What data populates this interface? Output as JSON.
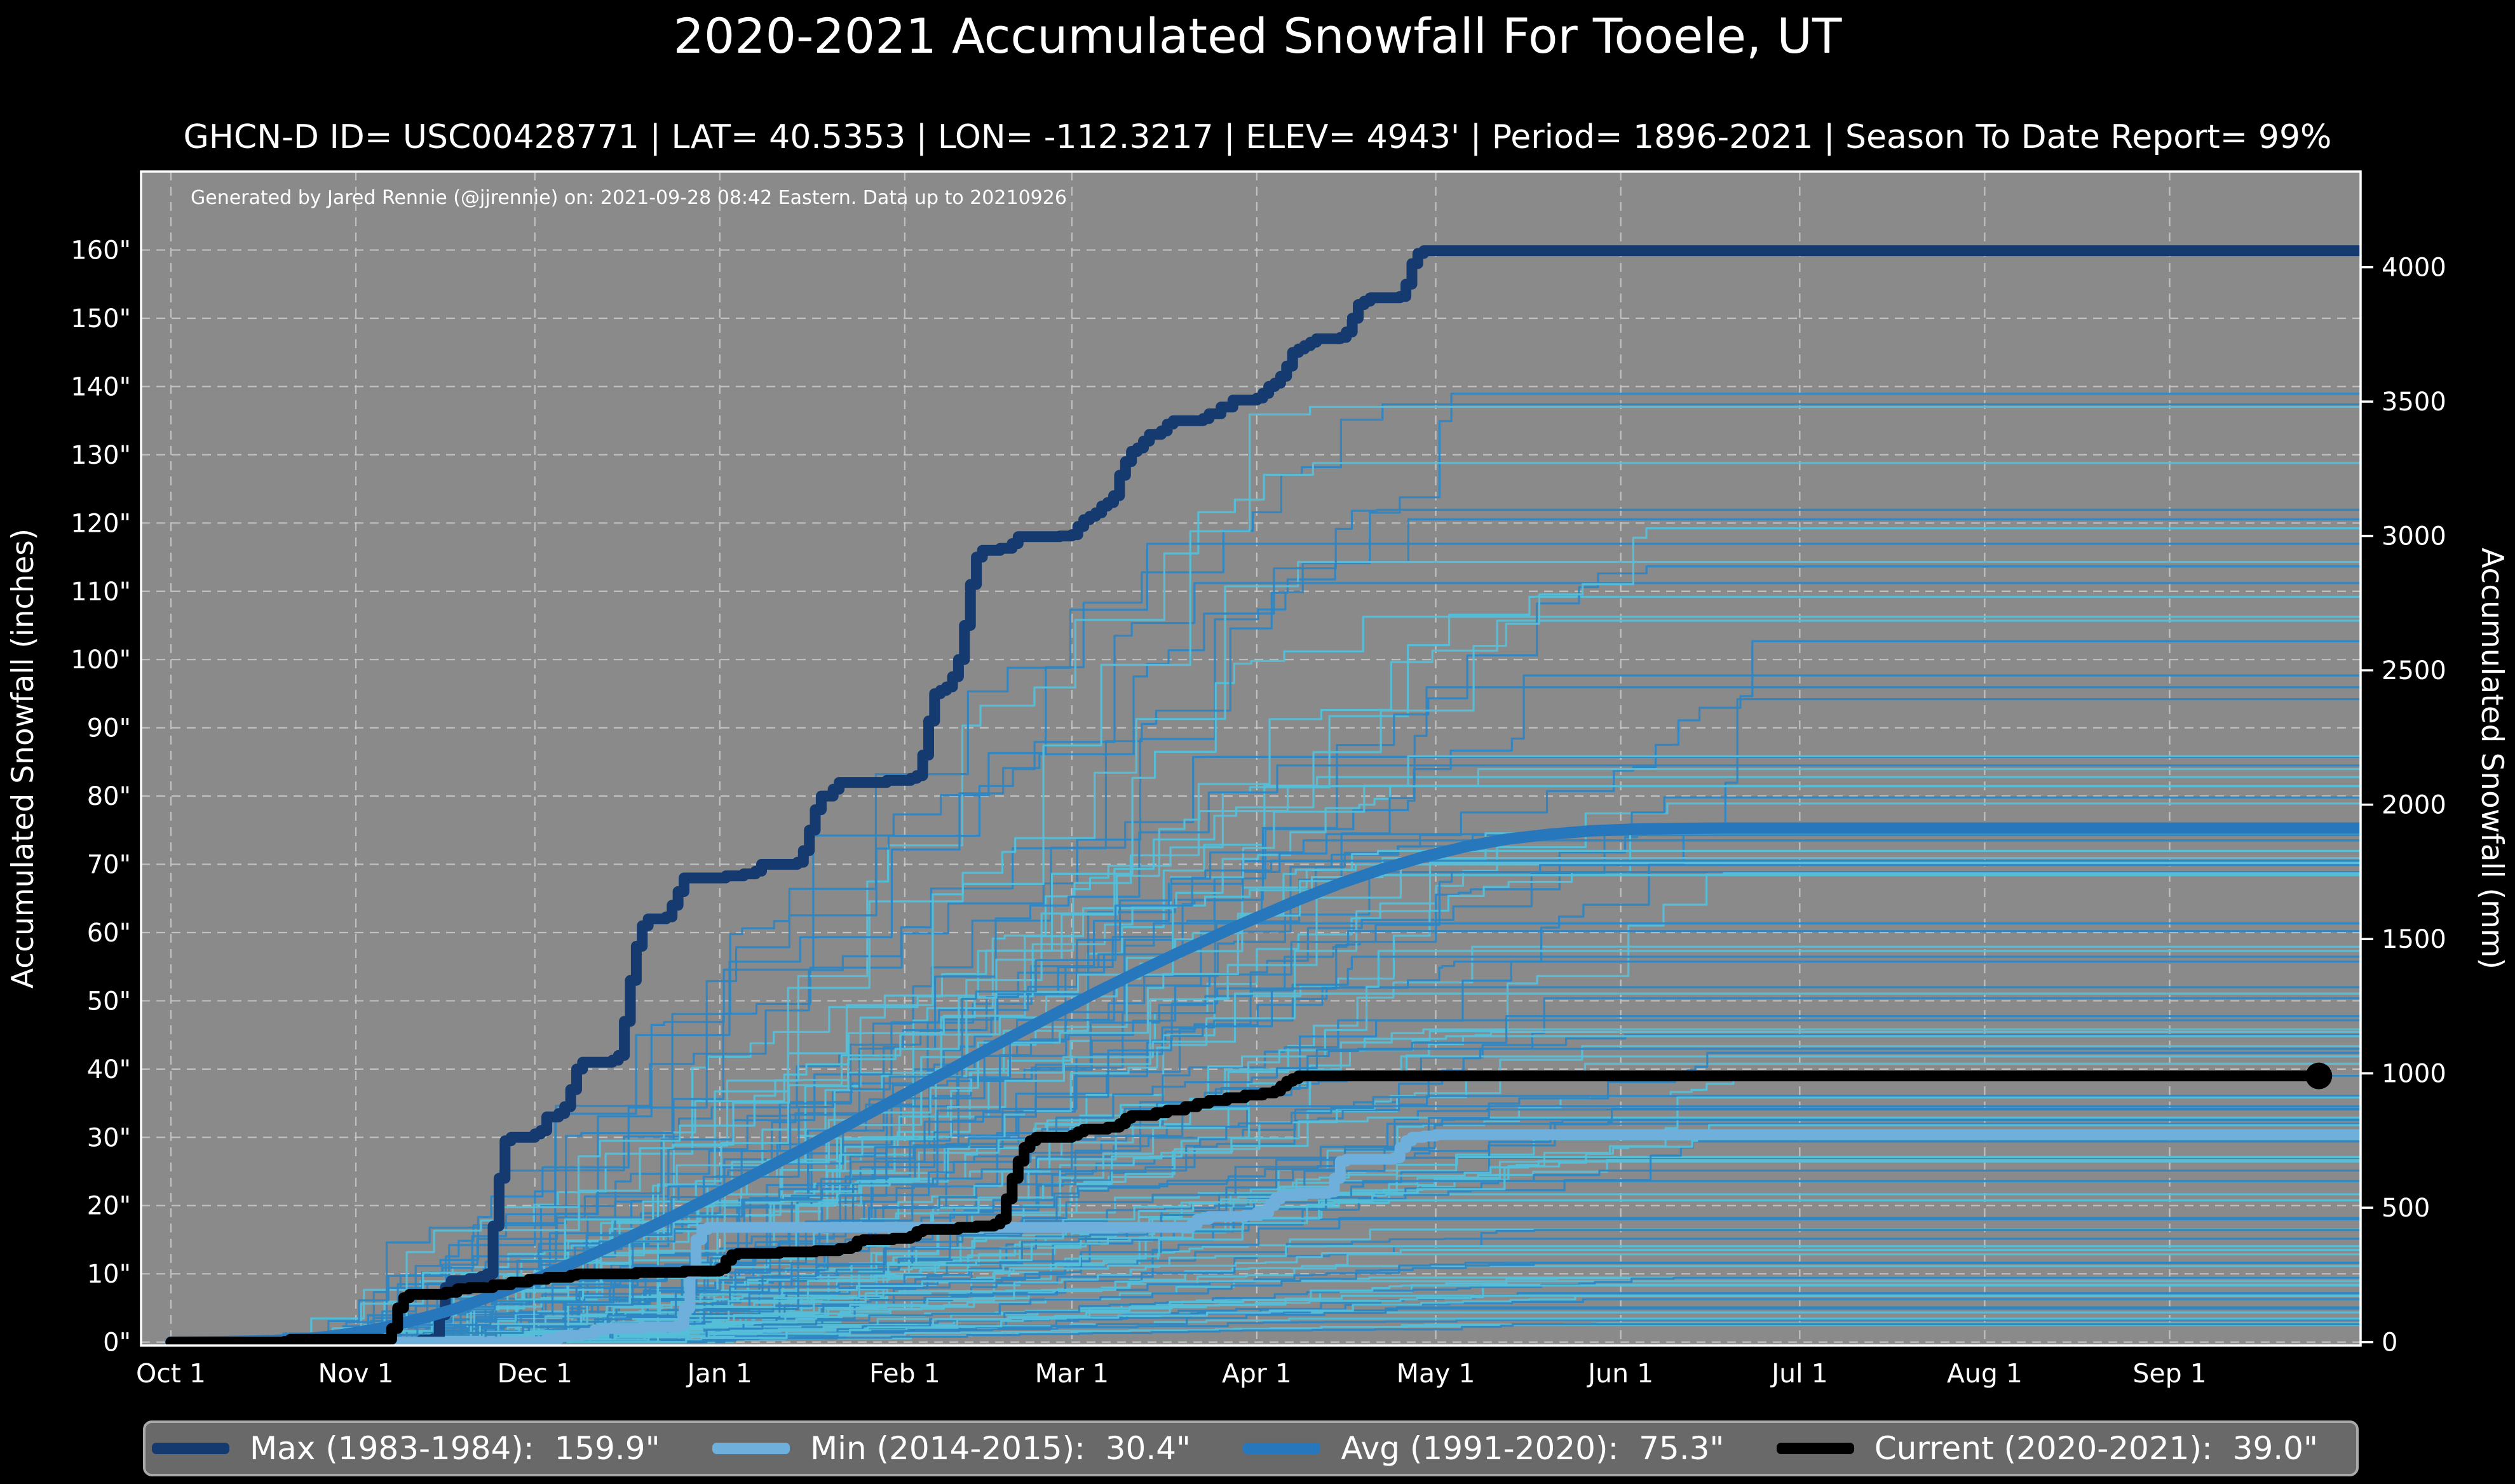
{
  "title": "2020-2021 Accumulated Snowfall For Tooele, UT",
  "subtitle": "GHCN-D ID= USC00428771 | LAT= 40.5353 | LON= -112.3217 | ELEV= 4943' | Period= 1896-2021 | Season To Date Report= 99%",
  "attribution": "Generated by Jared Rennie (@jjrennie) on: 2021-09-28 08:42 Eastern. Data up to 20210926",
  "legend": {
    "items": [
      {
        "label": "Max (1983-1984):  159.9\"",
        "color": "#153a70"
      },
      {
        "label": "Min (2014-2015):  30.4\"",
        "color": "#6fafdc"
      },
      {
        "label": "Avg (1991-2020):  75.3\"",
        "color": "#2777bd"
      },
      {
        "label": "Current (2020-2021):  39.0\"",
        "color": "#000000"
      }
    ]
  },
  "colors": {
    "figure_background": "#000000",
    "plot_background": "#8a8a8a",
    "grid": "#cfcfcf",
    "axis": "#ffffff",
    "text": "#ffffff"
  },
  "chart_data": {
    "type": "line",
    "title": "2020-2021 Accumulated Snowfall For Tooele, UT",
    "xlabel": "",
    "ylabel_left": "Accumulated Snowfall (inches)",
    "ylabel_right": "Accumulated Snowfall (mm)",
    "grid": true,
    "legend_position": "bottom",
    "x_axis": {
      "unit": "days since Oct 1",
      "domain": [
        -5,
        367
      ],
      "tick_days": [
        0,
        31,
        61,
        92,
        123,
        151,
        182,
        212,
        243,
        273,
        304,
        335
      ],
      "tick_labels": [
        "Oct 1",
        "Nov 1",
        "Dec 1",
        "Jan 1",
        "Feb 1",
        "Mar 1",
        "Apr 1",
        "May 1",
        "Jun 1",
        "Jul 1",
        "Aug 1",
        "Sep 1"
      ]
    },
    "y_axis_left": {
      "label": "Accumulated Snowfall (inches)",
      "domain": [
        -0.5,
        171.5
      ],
      "tick_values": [
        0,
        10,
        20,
        30,
        40,
        50,
        60,
        70,
        80,
        90,
        100,
        110,
        120,
        130,
        140,
        150,
        160
      ],
      "tick_labels": [
        "0\"",
        "10\"",
        "20\"",
        "30\"",
        "40\"",
        "50\"",
        "60\"",
        "70\"",
        "80\"",
        "90\"",
        "100\"",
        "110\"",
        "120\"",
        "130\"",
        "140\"",
        "150\"",
        "160\""
      ]
    },
    "y_axis_right": {
      "label": "Accumulated Snowfall (mm)",
      "tick_values": [
        0,
        500,
        1000,
        1500,
        2000,
        2500,
        3000,
        3500,
        4000
      ],
      "mm_per_inch": 25.4
    },
    "series": [
      {
        "name": "Max (1983-1984)",
        "final_value_inches": 159.9,
        "color": "#153a70",
        "width": 17,
        "interpolation": "step-after",
        "points": [
          [
            0,
            0
          ],
          [
            42,
            0.3
          ],
          [
            44,
            0.5
          ],
          [
            45,
            4
          ],
          [
            46,
            8
          ],
          [
            47,
            9
          ],
          [
            50,
            9.3
          ],
          [
            52,
            9.6
          ],
          [
            53,
            10
          ],
          [
            54,
            17
          ],
          [
            55,
            24
          ],
          [
            56,
            29.5
          ],
          [
            57,
            30
          ],
          [
            61,
            30.5
          ],
          [
            62,
            31
          ],
          [
            63,
            33
          ],
          [
            65,
            33.5
          ],
          [
            66,
            34.5
          ],
          [
            67,
            37
          ],
          [
            68,
            40
          ],
          [
            69,
            41
          ],
          [
            74,
            41.3
          ],
          [
            75,
            42
          ],
          [
            76,
            47
          ],
          [
            77,
            53
          ],
          [
            78,
            58
          ],
          [
            79,
            61
          ],
          [
            80,
            62
          ],
          [
            83,
            62.3
          ],
          [
            84,
            64
          ],
          [
            85,
            66
          ],
          [
            86,
            68
          ],
          [
            93,
            68.3
          ],
          [
            96,
            68.6
          ],
          [
            98,
            69
          ],
          [
            99,
            70
          ],
          [
            105,
            70.3
          ],
          [
            106,
            72
          ],
          [
            107,
            75
          ],
          [
            108,
            78
          ],
          [
            109,
            80
          ],
          [
            111,
            81
          ],
          [
            112,
            82
          ],
          [
            120,
            82.3
          ],
          [
            124,
            82.6
          ],
          [
            125,
            83
          ],
          [
            126,
            86
          ],
          [
            127,
            91
          ],
          [
            128,
            95
          ],
          [
            129,
            95.5
          ],
          [
            130,
            96
          ],
          [
            131,
            97.5
          ],
          [
            132,
            100
          ],
          [
            133,
            105
          ],
          [
            134,
            111
          ],
          [
            135,
            115
          ],
          [
            136,
            116
          ],
          [
            139,
            116.3
          ],
          [
            141,
            117
          ],
          [
            142,
            118
          ],
          [
            149,
            118.1
          ],
          [
            151,
            118.3
          ],
          [
            152,
            119.5
          ],
          [
            153,
            120.5
          ],
          [
            154,
            121
          ],
          [
            155,
            121.5
          ],
          [
            156,
            122.5
          ],
          [
            157,
            123
          ],
          [
            158,
            124
          ],
          [
            159,
            127
          ],
          [
            160,
            129
          ],
          [
            161,
            130.5
          ],
          [
            162,
            131
          ],
          [
            163,
            132
          ],
          [
            164,
            133
          ],
          [
            166,
            133.5
          ],
          [
            167,
            134.5
          ],
          [
            168,
            135
          ],
          [
            173,
            135.3
          ],
          [
            174,
            136
          ],
          [
            176,
            137
          ],
          [
            178,
            138
          ],
          [
            182,
            138.3
          ],
          [
            183,
            139
          ],
          [
            184,
            140
          ],
          [
            185,
            140.5
          ],
          [
            186,
            141.5
          ],
          [
            187,
            143
          ],
          [
            188,
            145
          ],
          [
            189,
            145.5
          ],
          [
            190,
            146
          ],
          [
            191,
            146.5
          ],
          [
            192,
            147
          ],
          [
            196,
            147.2
          ],
          [
            197,
            148
          ],
          [
            198,
            150
          ],
          [
            199,
            152
          ],
          [
            200,
            152.5
          ],
          [
            201,
            153
          ],
          [
            206,
            153.2
          ],
          [
            207,
            155
          ],
          [
            208,
            158
          ],
          [
            209,
            159.5
          ],
          [
            210,
            159.9
          ],
          [
            367,
            159.9
          ]
        ]
      },
      {
        "name": "Min (2014-2015)",
        "final_value_inches": 30.4,
        "color": "#6fafdc",
        "width": 17,
        "interpolation": "step-after",
        "points": [
          [
            0,
            0
          ],
          [
            62,
            0
          ],
          [
            63,
            0.4
          ],
          [
            65,
            0.8
          ],
          [
            66,
            1
          ],
          [
            69,
            1.3
          ],
          [
            71,
            1.8
          ],
          [
            73,
            2
          ],
          [
            79,
            2.2
          ],
          [
            85,
            2.5
          ],
          [
            86,
            5
          ],
          [
            87,
            10
          ],
          [
            88,
            15
          ],
          [
            89,
            16.5
          ],
          [
            90,
            16.8
          ],
          [
            170,
            16.8
          ],
          [
            171,
            17.2
          ],
          [
            172,
            18
          ],
          [
            174,
            18.4
          ],
          [
            180,
            18.6
          ],
          [
            182,
            19
          ],
          [
            184,
            20
          ],
          [
            185,
            21
          ],
          [
            186,
            21.5
          ],
          [
            189,
            21.8
          ],
          [
            194,
            22
          ],
          [
            195,
            24
          ],
          [
            196,
            26.5
          ],
          [
            197,
            26.8
          ],
          [
            205,
            27
          ],
          [
            206,
            28.5
          ],
          [
            207,
            29.5
          ],
          [
            208,
            30
          ],
          [
            210,
            30.2
          ],
          [
            212,
            30.4
          ],
          [
            367,
            30.4
          ]
        ]
      },
      {
        "name": "Avg (1991-2020)",
        "final_value_inches": 75.3,
        "color": "#2777bd",
        "width": 18,
        "interpolation": "linear",
        "points": [
          [
            0,
            0
          ],
          [
            8,
            0.05
          ],
          [
            14,
            0.15
          ],
          [
            19,
            0.3
          ],
          [
            24,
            0.6
          ],
          [
            28,
            1
          ],
          [
            31,
            1.4
          ],
          [
            35,
            2
          ],
          [
            39,
            2.8
          ],
          [
            43,
            3.7
          ],
          [
            47,
            4.7
          ],
          [
            52,
            6.2
          ],
          [
            56,
            7.5
          ],
          [
            61,
            9.2
          ],
          [
            65,
            10.7
          ],
          [
            70,
            12.6
          ],
          [
            75,
            14.6
          ],
          [
            80,
            16.7
          ],
          [
            85,
            18.8
          ],
          [
            92,
            21.9
          ],
          [
            99,
            25.1
          ],
          [
            106,
            28.3
          ],
          [
            113,
            31.6
          ],
          [
            120,
            34.9
          ],
          [
            127,
            38.2
          ],
          [
            134,
            41.5
          ],
          [
            141,
            44.8
          ],
          [
            148,
            48
          ],
          [
            155,
            51.2
          ],
          [
            162,
            54.2
          ],
          [
            169,
            57.1
          ],
          [
            176,
            59.9
          ],
          [
            182,
            62.2
          ],
          [
            189,
            64.8
          ],
          [
            196,
            67.2
          ],
          [
            203,
            69.3
          ],
          [
            210,
            71.1
          ],
          [
            217,
            72.6
          ],
          [
            224,
            73.7
          ],
          [
            231,
            74.4
          ],
          [
            238,
            74.9
          ],
          [
            245,
            75.15
          ],
          [
            252,
            75.25
          ],
          [
            260,
            75.3
          ],
          [
            367,
            75.3
          ]
        ]
      },
      {
        "name": "Current (2020-2021)",
        "final_value_inches": 39.0,
        "color": "#000000",
        "width": 17,
        "interpolation": "step-after",
        "end_marker": {
          "day": 360,
          "value": 39.0,
          "radius": 21
        },
        "points": [
          [
            0,
            0
          ],
          [
            19,
            0.1
          ],
          [
            20,
            0.4
          ],
          [
            36,
            0.4
          ],
          [
            37,
            2
          ],
          [
            38,
            5
          ],
          [
            39,
            6.5
          ],
          [
            40,
            7
          ],
          [
            46,
            7.3
          ],
          [
            48,
            7.8
          ],
          [
            50,
            8
          ],
          [
            54,
            8.4
          ],
          [
            57,
            8.8
          ],
          [
            60,
            9.2
          ],
          [
            63,
            9.5
          ],
          [
            67,
            9.8
          ],
          [
            68,
            10
          ],
          [
            78,
            10.2
          ],
          [
            86,
            10.4
          ],
          [
            92,
            10.8
          ],
          [
            93,
            12
          ],
          [
            94,
            12.8
          ],
          [
            95,
            13
          ],
          [
            102,
            13.2
          ],
          [
            108,
            13.4
          ],
          [
            112,
            13.7
          ],
          [
            114,
            14
          ],
          [
            115,
            14.8
          ],
          [
            116,
            15
          ],
          [
            121,
            15.2
          ],
          [
            124,
            15.5
          ],
          [
            125,
            16.2
          ],
          [
            126,
            16.5
          ],
          [
            132,
            16.8
          ],
          [
            135,
            17
          ],
          [
            138,
            17.3
          ],
          [
            139,
            18
          ],
          [
            140,
            21
          ],
          [
            141,
            24
          ],
          [
            142,
            26.5
          ],
          [
            143,
            28.5
          ],
          [
            144,
            29.5
          ],
          [
            145,
            30
          ],
          [
            151,
            30.3
          ],
          [
            152,
            30.8
          ],
          [
            153,
            31.2
          ],
          [
            157,
            31.5
          ],
          [
            159,
            32
          ],
          [
            160,
            32.8
          ],
          [
            161,
            33.2
          ],
          [
            165,
            33.6
          ],
          [
            167,
            34
          ],
          [
            170,
            34.5
          ],
          [
            172,
            35
          ],
          [
            174,
            35.4
          ],
          [
            177,
            35.8
          ],
          [
            180,
            36.2
          ],
          [
            183,
            36.5
          ],
          [
            185,
            36.8
          ],
          [
            186,
            37.5
          ],
          [
            187,
            38.2
          ],
          [
            188,
            38.6
          ],
          [
            189,
            39
          ],
          [
            360,
            39
          ]
        ]
      }
    ],
    "background_seasons": {
      "note": "Unlabeled thin traces for each season 1896-2021; procedurally approximated random accumulation walks.",
      "count": 115,
      "colors": [
        "#2e86c2",
        "#55bfd9"
      ],
      "width": 3.2,
      "opacity": 0.95,
      "final_inches_range": [
        2.5,
        139
      ],
      "start_day_range": [
        15,
        85
      ],
      "plateau_day_range": [
        190,
        265
      ],
      "seed": 20210926
    }
  }
}
